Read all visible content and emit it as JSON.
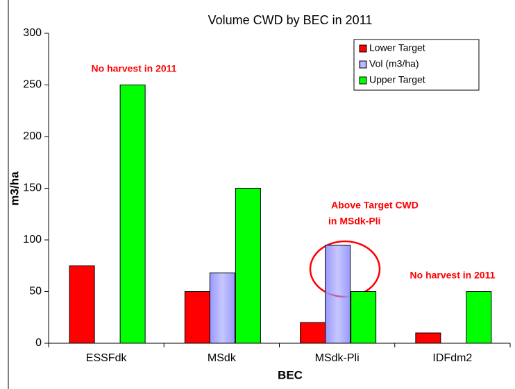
{
  "chart_data": {
    "type": "bar",
    "title": "Volume CWD by BEC in 2011",
    "x_label": "BEC",
    "y_label": "m3/ha",
    "categories": [
      "ESSFdk",
      "MSdk",
      "MSdk-Pli",
      "IDFdm2"
    ],
    "series": [
      {
        "name": "Lower Target",
        "color": "#ff0000",
        "values": [
          75,
          50,
          20,
          10
        ]
      },
      {
        "name": "Vol (m3/ha)",
        "color": "#9999ff",
        "values": [
          null,
          68,
          95,
          null
        ]
      },
      {
        "name": "Upper Target",
        "color": "#00ff00",
        "values": [
          250,
          150,
          50,
          50
        ]
      }
    ],
    "ylim": [
      0,
      300
    ],
    "yticks": [
      0,
      50,
      100,
      150,
      200,
      250,
      300
    ],
    "grid": false,
    "legend": "upper right",
    "annotations": [
      "No harvest in 2011",
      "Above Target CWD",
      "in MSdk-Pli",
      "No harvest in 2011"
    ]
  }
}
